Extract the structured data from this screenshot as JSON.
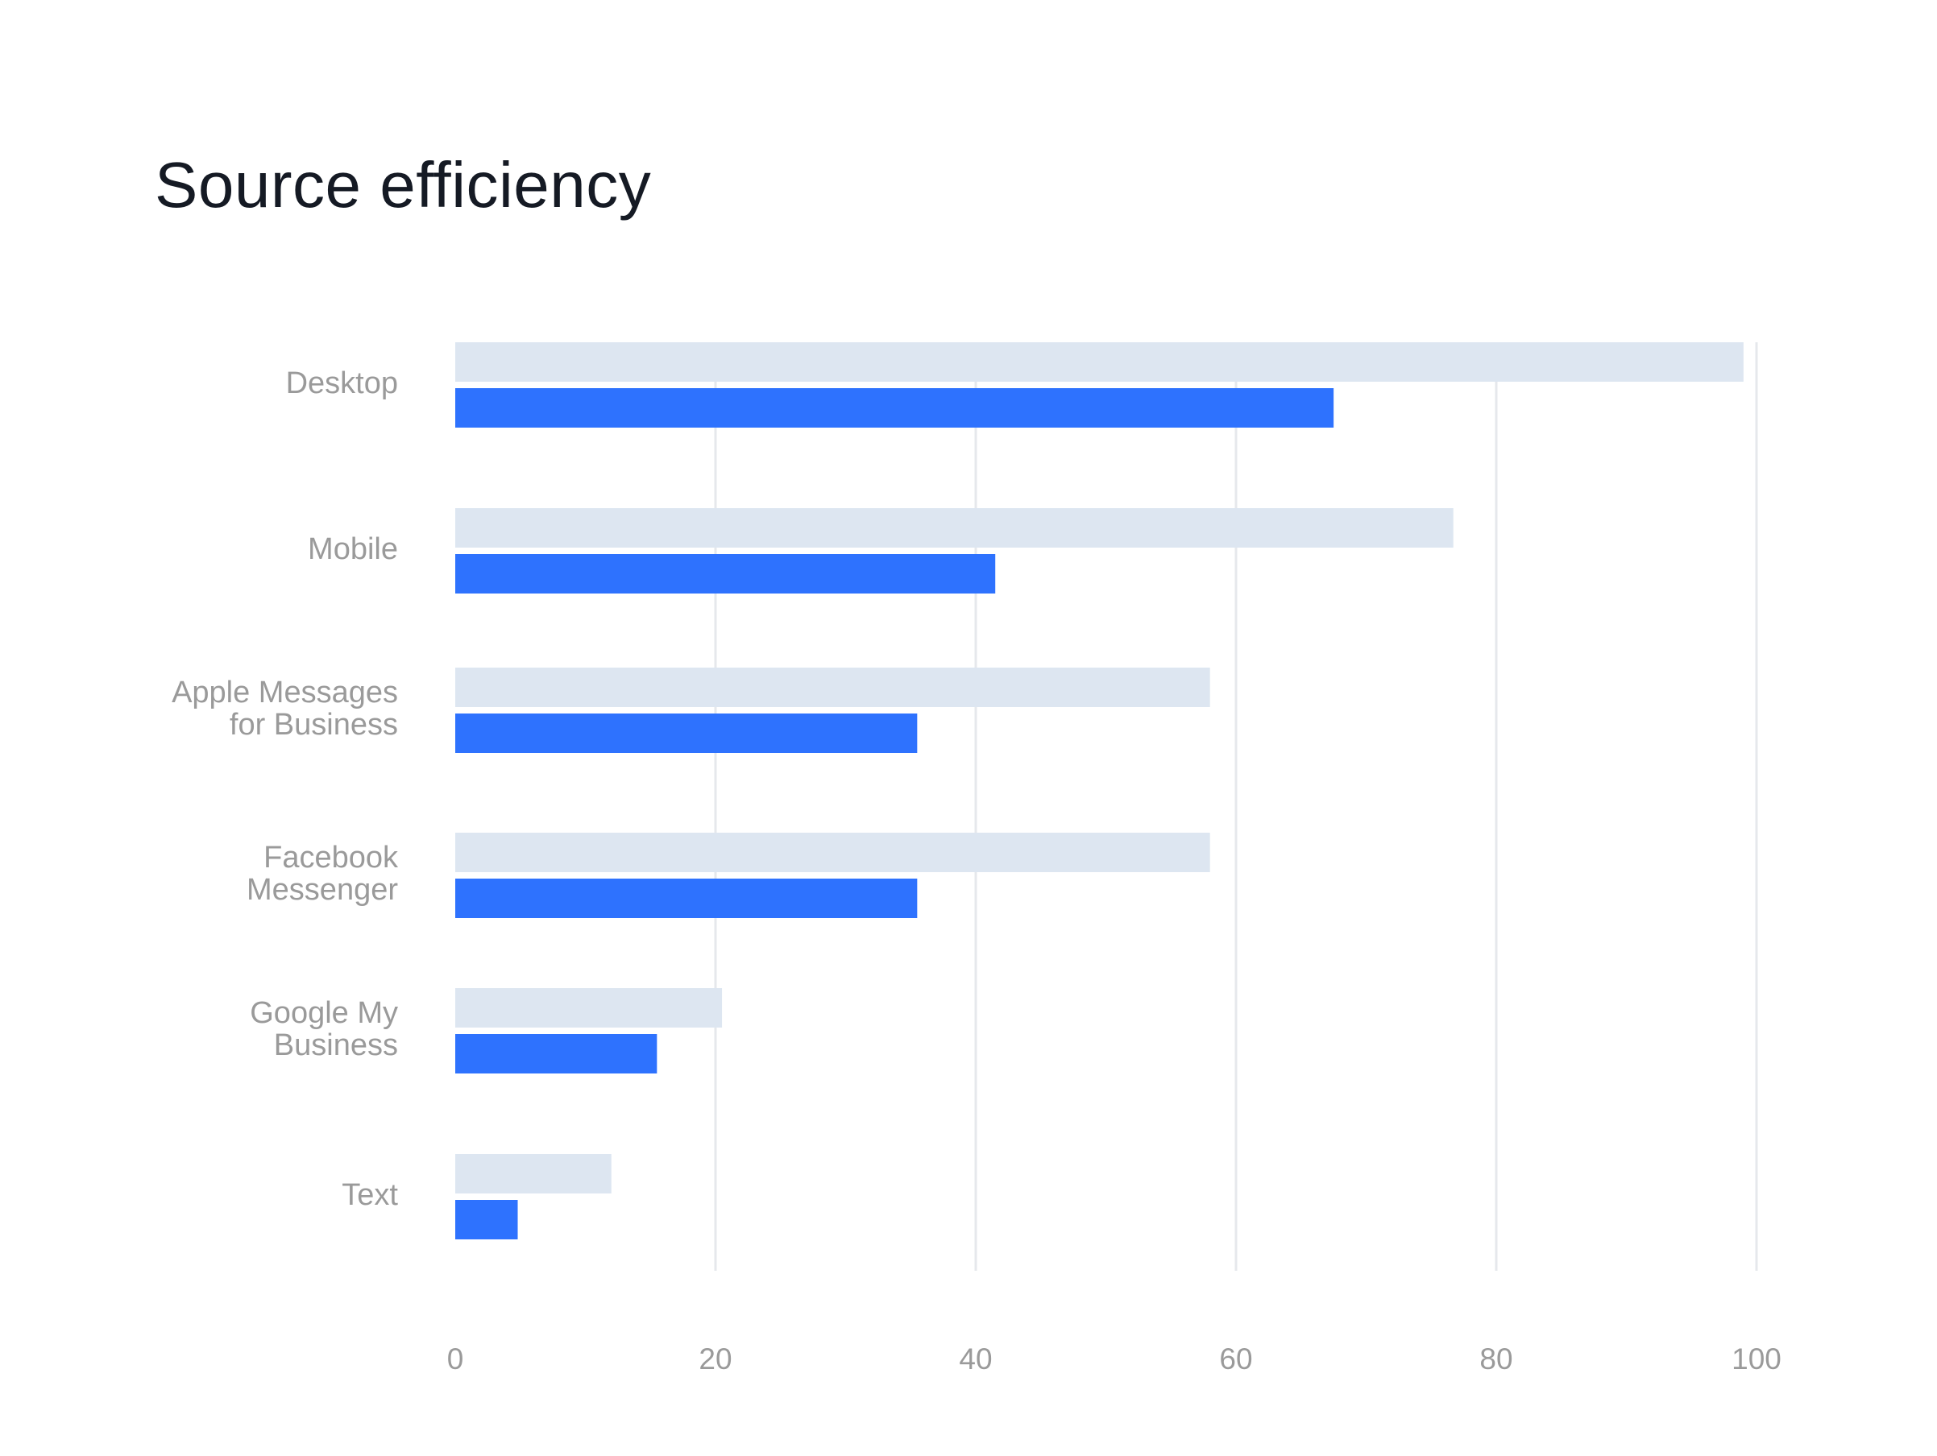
{
  "chart_data": {
    "type": "bar",
    "orientation": "horizontal",
    "title": "Source efficiency",
    "categories": [
      [
        "Desktop"
      ],
      [
        "Mobile"
      ],
      [
        "Apple Messages",
        "for Business"
      ],
      [
        "Facebook",
        "Messenger"
      ],
      [
        "Google My",
        "Business"
      ],
      [
        "Text"
      ]
    ],
    "series": [
      {
        "values": [
          99,
          76.7,
          58,
          58,
          20.5,
          12
        ],
        "color": "#dde6f1"
      },
      {
        "values": [
          67.5,
          41.5,
          35.5,
          35.5,
          15.5,
          4.8
        ],
        "color": "#2e72fe"
      }
    ],
    "xlim": [
      0,
      100
    ],
    "xticks": [
      "0",
      "20",
      "40",
      "60",
      "80",
      "100"
    ],
    "grid": true,
    "grid_color": "#e6e8ec",
    "xlabel": "",
    "ylabel": ""
  }
}
